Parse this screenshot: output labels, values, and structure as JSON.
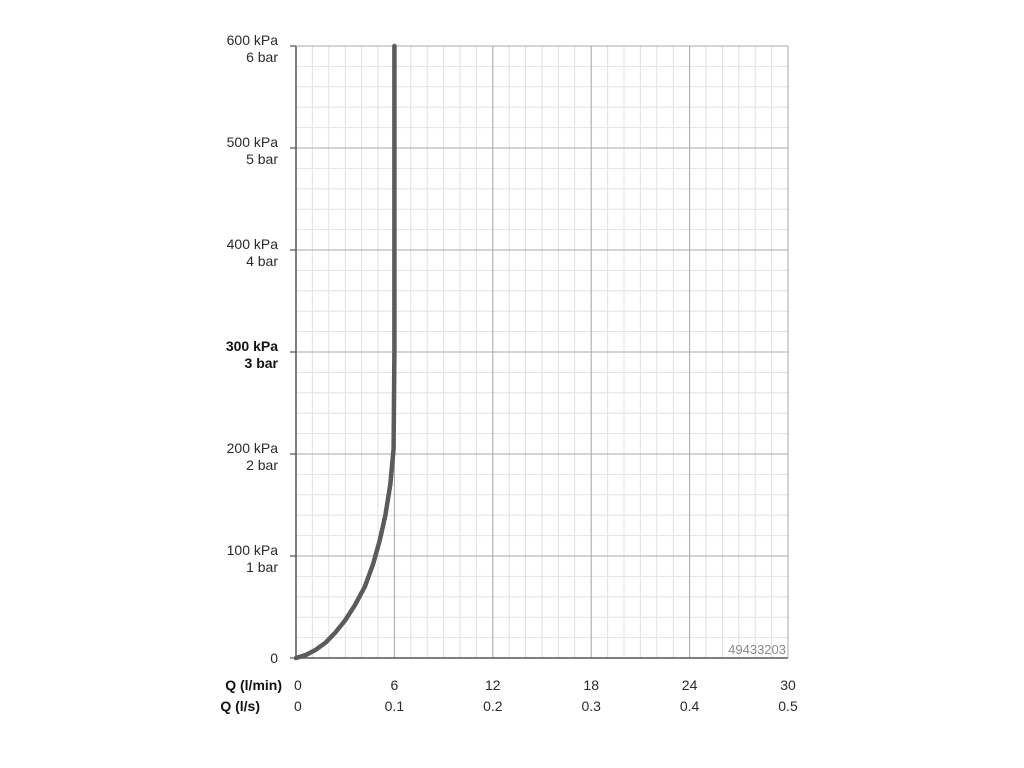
{
  "chart_data": {
    "type": "line",
    "title": "",
    "x_primary": {
      "label": "Q (l/min)",
      "ticks": [
        "0",
        "6",
        "12",
        "18",
        "24",
        "30"
      ],
      "range": [
        0,
        30
      ]
    },
    "x_secondary": {
      "label": "Q (l/s)",
      "ticks": [
        "0",
        "0.1",
        "0.2",
        "0.3",
        "0.4",
        "0.5"
      ],
      "range": [
        0,
        0.5
      ]
    },
    "y": {
      "range": [
        0,
        600
      ],
      "ticks": [
        {
          "value": 600,
          "kpa": "600 kPa",
          "bar": "6 bar",
          "bold": false
        },
        {
          "value": 500,
          "kpa": "500 kPa",
          "bar": "5 bar",
          "bold": false
        },
        {
          "value": 400,
          "kpa": "400 kPa",
          "bar": "4 bar",
          "bold": false
        },
        {
          "value": 300,
          "kpa": "300 kPa",
          "bar": "3 bar",
          "bold": true
        },
        {
          "value": 200,
          "kpa": "200 kPa",
          "bar": "2 bar",
          "bold": false
        },
        {
          "value": 100,
          "kpa": "100 kPa",
          "bar": "1 bar",
          "bold": false
        },
        {
          "value": 0,
          "kpa": "0",
          "bar": "",
          "bold": false
        }
      ]
    },
    "grid": true,
    "series": [
      {
        "color": "#5b5b5b",
        "points": [
          [
            0,
            0
          ],
          [
            0.6,
            3
          ],
          [
            1.2,
            8
          ],
          [
            1.8,
            15
          ],
          [
            2.4,
            25
          ],
          [
            3.0,
            37
          ],
          [
            3.6,
            52
          ],
          [
            4.2,
            70
          ],
          [
            4.7,
            92
          ],
          [
            5.1,
            115
          ],
          [
            5.45,
            140
          ],
          [
            5.75,
            170
          ],
          [
            5.95,
            205
          ],
          [
            6.0,
            300
          ],
          [
            6.0,
            400
          ],
          [
            6.0,
            500
          ],
          [
            6.0,
            600
          ]
        ]
      }
    ],
    "code_label": "49433203"
  }
}
